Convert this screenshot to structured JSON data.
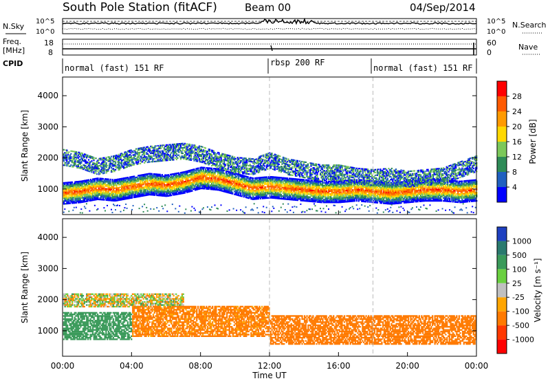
{
  "header": {
    "title": "South Pole Station (fitACF)",
    "beam": "Beam 00",
    "date": "04/Sep/2014"
  },
  "params_panel": {
    "nsky_label": "N.Sky",
    "nsearch_label": "N.Search",
    "noise_ticks": [
      "10^5",
      "10^0"
    ],
    "freq_label": "Freq.",
    "freq_unit": "[MHz]",
    "freq_ticks": [
      "18",
      "8"
    ],
    "nave_label": "Nave",
    "nave_ticks": [
      "60",
      "0"
    ],
    "cpid_label": "CPID",
    "cpid_segments": [
      {
        "label": "normal (fast) 151 RF",
        "start": 0,
        "end": 12
      },
      {
        "label": "rbsp 200 RF",
        "start": 12,
        "end": 18
      },
      {
        "label": "normal (fast) 151 RF",
        "start": 18,
        "end": 24
      }
    ]
  },
  "colors": {
    "power_scale": [
      "#0000ff",
      "#2060c0",
      "#2e8b57",
      "#7cc85a",
      "#ffd800",
      "#ff9a00",
      "#ff5a00",
      "#ff0000"
    ],
    "velocity_scale": [
      "#1e40c0",
      "#2a7a6e",
      "#3a9a5a",
      "#6ad040",
      "#c0c0c0",
      "#ffa500",
      "#ff7a00",
      "#ff3800",
      "#ff0000"
    ],
    "guide_line": "#bbbbbb"
  },
  "chart_data": [
    {
      "type": "heatmap",
      "name": "power",
      "ylabel": "Slant Range [km]",
      "xlabel": "Time UT",
      "xlim": [
        0,
        24
      ],
      "ylim": [
        180,
        4600
      ],
      "x_ticks": [
        "00:00",
        "04:00",
        "08:00",
        "12:00",
        "16:00",
        "20:00",
        "00:00"
      ],
      "y_ticks": [
        1000,
        2000,
        3000,
        4000
      ],
      "colorbar": {
        "label": "Power [dB]",
        "ticks": [
          "4",
          "8",
          "12",
          "16",
          "20",
          "24",
          "28"
        ],
        "range": [
          0,
          30
        ]
      },
      "main_band_km": [
        [
          0,
          850
        ],
        [
          1,
          900
        ],
        [
          2,
          1000
        ],
        [
          3,
          950
        ],
        [
          4,
          1050
        ],
        [
          5,
          1150
        ],
        [
          6,
          1100
        ],
        [
          7,
          1200
        ],
        [
          8,
          1350
        ],
        [
          9,
          1300
        ],
        [
          10,
          1150
        ],
        [
          11,
          1000
        ],
        [
          12,
          1050
        ],
        [
          13,
          1000
        ],
        [
          14,
          950
        ],
        [
          15,
          900
        ],
        [
          16,
          900
        ],
        [
          17,
          950
        ],
        [
          18,
          900
        ],
        [
          19,
          850
        ],
        [
          20,
          900
        ],
        [
          21,
          950
        ],
        [
          22,
          950
        ],
        [
          23,
          900
        ],
        [
          24,
          950
        ]
      ],
      "upper_band_km": [
        [
          0,
          2000
        ],
        [
          1,
          1900
        ],
        [
          2,
          1700
        ],
        [
          3,
          1800
        ],
        [
          4,
          2000
        ],
        [
          5,
          2100
        ],
        [
          6,
          2150
        ],
        [
          7,
          2200
        ],
        [
          8,
          2100
        ],
        [
          9,
          1900
        ],
        [
          10,
          1750
        ],
        [
          11,
          1700
        ],
        [
          12,
          1900
        ],
        [
          13,
          1700
        ],
        [
          14,
          1600
        ],
        [
          15,
          1500
        ],
        [
          16,
          1500
        ],
        [
          17,
          1400
        ],
        [
          18,
          1350
        ],
        [
          19,
          1400
        ],
        [
          20,
          1300
        ],
        [
          21,
          1350
        ],
        [
          22,
          1400
        ],
        [
          23,
          1600
        ],
        [
          24,
          1800
        ]
      ]
    },
    {
      "type": "heatmap",
      "name": "velocity",
      "ylabel": "Slant Range [km]",
      "xlabel": "Time UT",
      "xlim": [
        0,
        24
      ],
      "ylim": [
        180,
        4600
      ],
      "x_ticks": [
        "00:00",
        "04:00",
        "08:00",
        "12:00",
        "16:00",
        "20:00",
        "00:00"
      ],
      "y_ticks": [
        1000,
        2000,
        3000,
        4000
      ],
      "colorbar": {
        "label": "Velocity [m s⁻¹]",
        "ticks": [
          "1000",
          "500",
          "100",
          "25",
          "-25",
          "-100",
          "-500",
          "-1000"
        ],
        "range": [
          -1000,
          1000
        ]
      },
      "regions": [
        {
          "t0": 0,
          "t1": 4,
          "r0": 700,
          "r1": 1600,
          "velocity": 250
        },
        {
          "t0": 0,
          "t1": 7,
          "r0": 1750,
          "r1": 2200,
          "velocity": 0
        },
        {
          "t0": 4,
          "t1": 12,
          "r0": 800,
          "r1": 1800,
          "velocity": -200
        },
        {
          "t0": 12,
          "t1": 24,
          "r0": 550,
          "r1": 1500,
          "velocity": -300
        }
      ]
    }
  ],
  "time_axis": {
    "label": "Time UT",
    "ticks": [
      "00:00",
      "04:00",
      "08:00",
      "12:00",
      "16:00",
      "20:00",
      "00:00"
    ]
  }
}
